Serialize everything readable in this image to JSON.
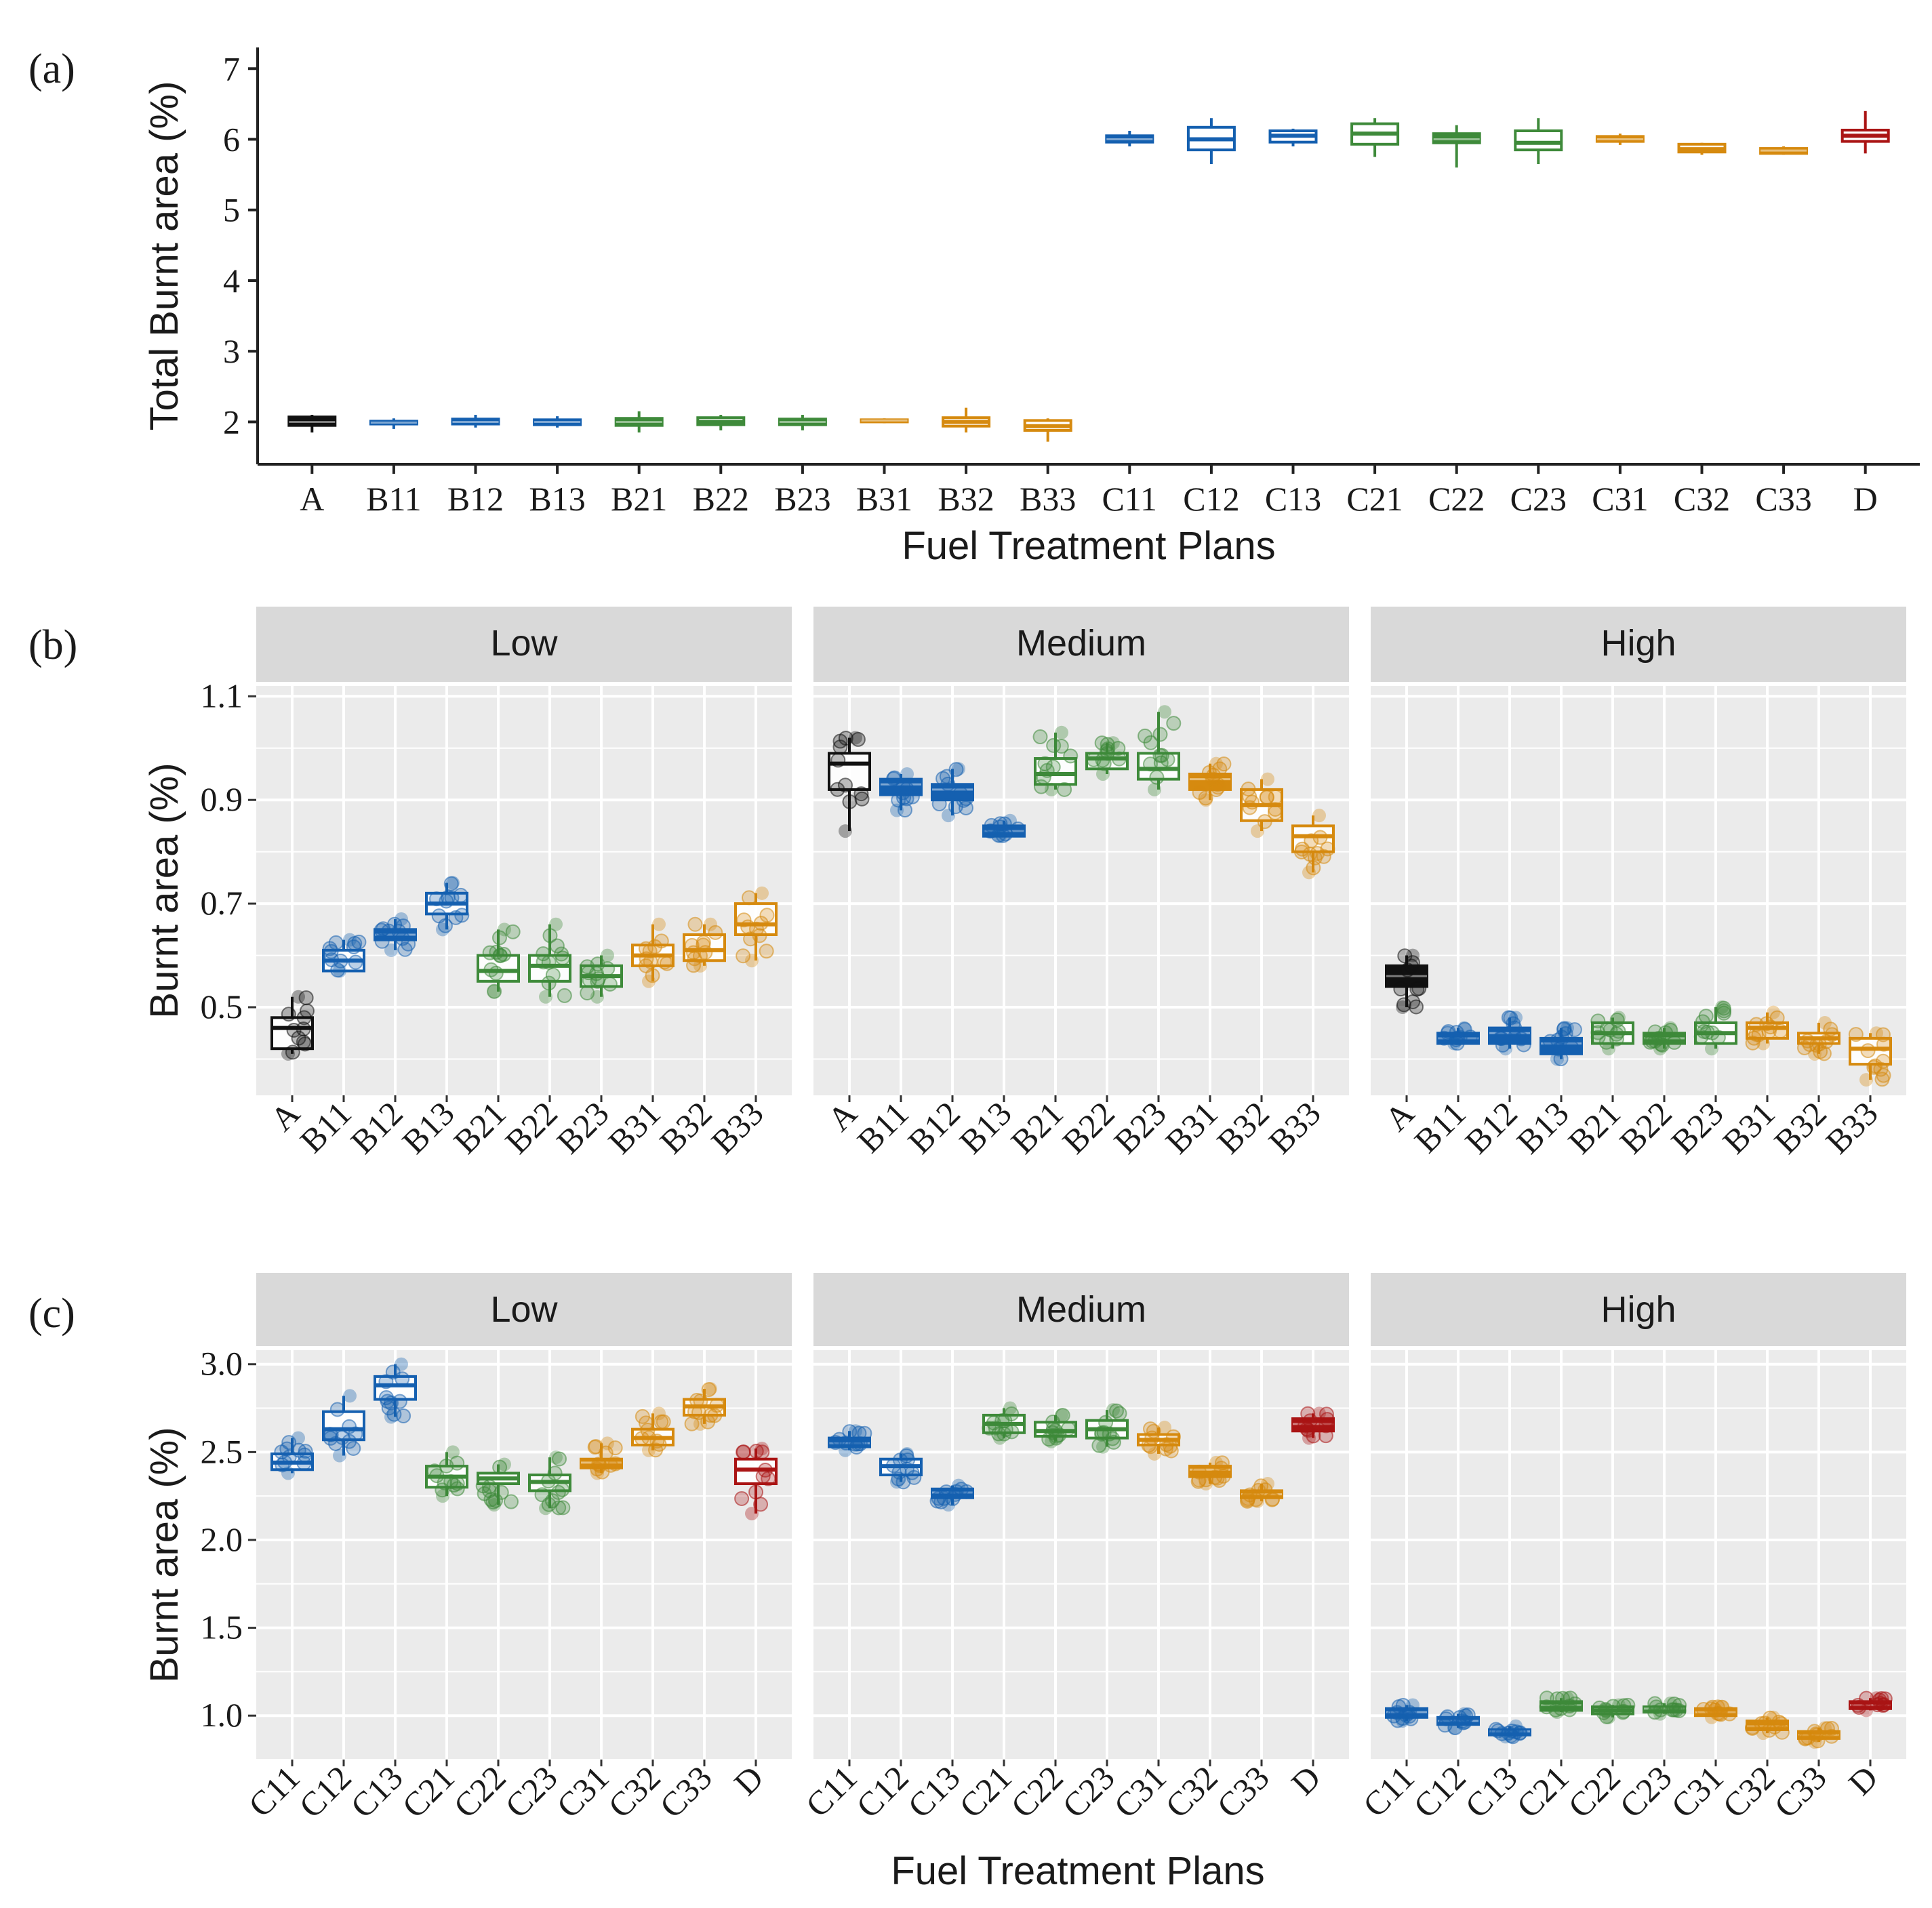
{
  "colors": {
    "A": "#111111",
    "B1": "#1560b0",
    "B2": "#3e8a3a",
    "B3": "#d68a0f",
    "C1": "#1560b0",
    "C2": "#3e8a3a",
    "C3": "#d68a0f",
    "D": "#aa1414",
    "panel_bg": "#ebebeb",
    "strip_bg": "#d9d9d9",
    "grid": "#ffffff"
  },
  "chart_data": [
    {
      "panel_label": "(a)",
      "type": "box",
      "ylabel": "Total Burnt area (%)",
      "xlabel": "Fuel Treatment Plans",
      "ylim": [
        1.4,
        7.3
      ],
      "yticks": [
        "2",
        "3",
        "4",
        "5",
        "6",
        "7"
      ],
      "categories": [
        "A",
        "B11",
        "B12",
        "B13",
        "B21",
        "B22",
        "B23",
        "B31",
        "B32",
        "B33",
        "C11",
        "C12",
        "C13",
        "C21",
        "C22",
        "C23",
        "C31",
        "C32",
        "C33",
        "D"
      ],
      "groups": [
        "A",
        "B1",
        "B1",
        "B1",
        "B2",
        "B2",
        "B2",
        "B3",
        "B3",
        "B3",
        "C1",
        "C1",
        "C1",
        "C2",
        "C2",
        "C2",
        "C3",
        "C3",
        "C3",
        "D"
      ],
      "filled": [
        true,
        true,
        true,
        true,
        true,
        false,
        true,
        true,
        false,
        false,
        true,
        false,
        false,
        false,
        true,
        false,
        true,
        false,
        true,
        false
      ],
      "boxes": [
        [
          1.85,
          1.95,
          2.0,
          2.07,
          2.1
        ],
        [
          1.9,
          1.97,
          1.99,
          2.01,
          2.05
        ],
        [
          1.92,
          1.97,
          2.0,
          2.04,
          2.1
        ],
        [
          1.92,
          1.96,
          2.0,
          2.03,
          2.08
        ],
        [
          1.85,
          1.95,
          2.0,
          2.05,
          2.15
        ],
        [
          1.88,
          1.96,
          2.0,
          2.06,
          2.1
        ],
        [
          1.88,
          1.96,
          2.0,
          2.04,
          2.1
        ],
        [
          1.98,
          2.0,
          2.02,
          2.03,
          2.05
        ],
        [
          1.85,
          1.94,
          2.0,
          2.06,
          2.2
        ],
        [
          1.72,
          1.88,
          1.94,
          2.02,
          2.05
        ],
        [
          5.9,
          5.96,
          6.0,
          6.05,
          6.12
        ],
        [
          5.65,
          5.85,
          6.0,
          6.17,
          6.3
        ],
        [
          5.9,
          5.96,
          6.05,
          6.12,
          6.15
        ],
        [
          5.75,
          5.93,
          6.08,
          6.22,
          6.3
        ],
        [
          5.6,
          5.95,
          6.0,
          6.08,
          6.2
        ],
        [
          5.65,
          5.85,
          5.95,
          6.12,
          6.3
        ],
        [
          5.92,
          5.97,
          6.0,
          6.04,
          6.08
        ],
        [
          5.78,
          5.82,
          5.86,
          5.93,
          5.95
        ],
        [
          5.78,
          5.8,
          5.84,
          5.87,
          5.9
        ],
        [
          5.8,
          5.97,
          6.05,
          6.13,
          6.4
        ]
      ]
    },
    {
      "panel_label": "(b)",
      "type": "box",
      "ylabel": "Burnt area (%)",
      "ylim": [
        0.33,
        1.12
      ],
      "yticks": [
        "0.5",
        "0.7",
        "0.9",
        "1.1"
      ],
      "facets": [
        "Low",
        "Medium",
        "High"
      ],
      "categories": [
        "A",
        "B11",
        "B12",
        "B13",
        "B21",
        "B22",
        "B23",
        "B31",
        "B32",
        "B33"
      ],
      "groups": [
        "A",
        "B1",
        "B1",
        "B1",
        "B2",
        "B2",
        "B2",
        "B3",
        "B3",
        "B3"
      ],
      "series": [
        {
          "name": "Low",
          "filled": [
            false,
            false,
            true,
            false,
            false,
            false,
            false,
            false,
            false,
            false
          ],
          "boxes": [
            [
              0.41,
              0.42,
              0.46,
              0.48,
              0.52
            ],
            [
              0.57,
              0.57,
              0.59,
              0.61,
              0.63
            ],
            [
              0.61,
              0.63,
              0.64,
              0.65,
              0.67
            ],
            [
              0.65,
              0.68,
              0.7,
              0.72,
              0.74
            ],
            [
              0.53,
              0.55,
              0.57,
              0.6,
              0.65
            ],
            [
              0.52,
              0.55,
              0.58,
              0.6,
              0.66
            ],
            [
              0.52,
              0.54,
              0.56,
              0.58,
              0.6
            ],
            [
              0.55,
              0.58,
              0.6,
              0.62,
              0.66
            ],
            [
              0.58,
              0.59,
              0.61,
              0.64,
              0.66
            ],
            [
              0.59,
              0.64,
              0.66,
              0.7,
              0.72
            ]
          ]
        },
        {
          "name": "Medium",
          "filled": [
            false,
            true,
            true,
            true,
            false,
            false,
            false,
            true,
            false,
            false
          ],
          "boxes": [
            [
              0.84,
              0.92,
              0.97,
              0.99,
              1.02
            ],
            [
              0.88,
              0.91,
              0.93,
              0.94,
              0.95
            ],
            [
              0.87,
              0.9,
              0.92,
              0.93,
              0.96
            ],
            [
              0.83,
              0.83,
              0.84,
              0.85,
              0.86
            ],
            [
              0.92,
              0.93,
              0.95,
              0.98,
              1.03
            ],
            [
              0.95,
              0.96,
              0.98,
              0.99,
              1.01
            ],
            [
              0.92,
              0.94,
              0.96,
              0.99,
              1.07
            ],
            [
              0.9,
              0.92,
              0.94,
              0.95,
              0.97
            ],
            [
              0.84,
              0.86,
              0.89,
              0.92,
              0.94
            ],
            [
              0.76,
              0.8,
              0.83,
              0.85,
              0.87
            ]
          ]
        },
        {
          "name": "High",
          "filled": [
            true,
            true,
            true,
            true,
            false,
            true,
            false,
            false,
            false,
            false
          ],
          "boxes": [
            [
              0.5,
              0.54,
              0.56,
              0.58,
              0.6
            ],
            [
              0.43,
              0.43,
              0.44,
              0.45,
              0.46
            ],
            [
              0.42,
              0.43,
              0.45,
              0.46,
              0.48
            ],
            [
              0.4,
              0.41,
              0.43,
              0.44,
              0.46
            ],
            [
              0.42,
              0.43,
              0.45,
              0.47,
              0.48
            ],
            [
              0.42,
              0.43,
              0.44,
              0.45,
              0.46
            ],
            [
              0.42,
              0.43,
              0.45,
              0.47,
              0.5
            ],
            [
              0.43,
              0.44,
              0.46,
              0.47,
              0.49
            ],
            [
              0.41,
              0.43,
              0.44,
              0.45,
              0.47
            ],
            [
              0.36,
              0.39,
              0.42,
              0.44,
              0.45
            ]
          ]
        }
      ]
    },
    {
      "panel_label": "(c)",
      "type": "box",
      "ylabel": "Burnt area (%)",
      "xlabel": "Fuel Treatment Plans",
      "ylim": [
        0.75,
        3.08
      ],
      "yticks": [
        "1.0",
        "1.5",
        "2.0",
        "2.5",
        "3.0"
      ],
      "facets": [
        "Low",
        "Medium",
        "High"
      ],
      "categories": [
        "C11",
        "C12",
        "C13",
        "C21",
        "C22",
        "C23",
        "C31",
        "C32",
        "C33",
        "D"
      ],
      "groups": [
        "C1",
        "C1",
        "C1",
        "C2",
        "C2",
        "C2",
        "C3",
        "C3",
        "C3",
        "D"
      ],
      "series": [
        {
          "name": "Low",
          "filled": [
            false,
            false,
            false,
            false,
            false,
            false,
            true,
            false,
            false,
            false
          ],
          "boxes": [
            [
              2.38,
              2.4,
              2.44,
              2.49,
              2.58
            ],
            [
              2.48,
              2.57,
              2.63,
              2.73,
              2.82
            ],
            [
              2.7,
              2.8,
              2.88,
              2.93,
              3.0
            ],
            [
              2.25,
              2.3,
              2.36,
              2.42,
              2.5
            ],
            [
              2.2,
              2.32,
              2.35,
              2.38,
              2.43
            ],
            [
              2.18,
              2.28,
              2.33,
              2.37,
              2.47
            ],
            [
              2.38,
              2.41,
              2.44,
              2.46,
              2.55
            ],
            [
              2.51,
              2.54,
              2.58,
              2.63,
              2.72
            ],
            [
              2.66,
              2.71,
              2.76,
              2.8,
              2.86
            ],
            [
              2.15,
              2.32,
              2.4,
              2.46,
              2.52
            ]
          ]
        },
        {
          "name": "Medium",
          "filled": [
            true,
            false,
            true,
            false,
            false,
            false,
            false,
            true,
            true,
            true
          ],
          "boxes": [
            [
              2.51,
              2.53,
              2.55,
              2.58,
              2.62
            ],
            [
              2.33,
              2.37,
              2.42,
              2.46,
              2.49
            ],
            [
              2.2,
              2.24,
              2.27,
              2.29,
              2.31
            ],
            [
              2.58,
              2.61,
              2.66,
              2.71,
              2.75
            ],
            [
              2.56,
              2.59,
              2.62,
              2.67,
              2.71
            ],
            [
              2.53,
              2.58,
              2.63,
              2.68,
              2.74
            ],
            [
              2.49,
              2.54,
              2.57,
              2.6,
              2.64
            ],
            [
              2.32,
              2.36,
              2.4,
              2.42,
              2.44
            ],
            [
              2.22,
              2.24,
              2.26,
              2.28,
              2.32
            ],
            [
              2.58,
              2.62,
              2.66,
              2.69,
              2.72
            ]
          ]
        },
        {
          "name": "High",
          "filled": [
            true,
            true,
            true,
            true,
            false,
            true,
            true,
            true,
            true,
            true
          ],
          "boxes": [
            [
              0.97,
              0.99,
              1.02,
              1.04,
              1.06
            ],
            [
              0.93,
              0.95,
              0.97,
              0.99,
              1.01
            ],
            [
              0.88,
              0.89,
              0.91,
              0.92,
              0.94
            ],
            [
              1.02,
              1.03,
              1.06,
              1.08,
              1.1
            ],
            [
              0.99,
              1.01,
              1.03,
              1.05,
              1.06
            ],
            [
              1.01,
              1.02,
              1.04,
              1.05,
              1.07
            ],
            [
              0.99,
              1.0,
              1.02,
              1.04,
              1.05
            ],
            [
              0.9,
              0.92,
              0.94,
              0.97,
              0.99
            ],
            [
              0.85,
              0.87,
              0.89,
              0.91,
              0.93
            ],
            [
              1.03,
              1.04,
              1.06,
              1.08,
              1.1
            ]
          ]
        }
      ]
    }
  ]
}
